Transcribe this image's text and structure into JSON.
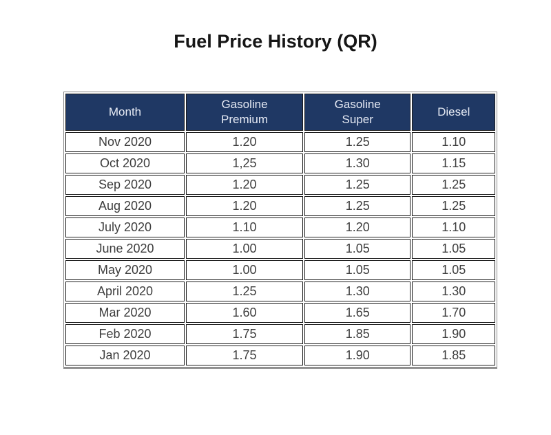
{
  "page": {
    "title": "Fuel Price History (QR)"
  },
  "colors": {
    "header_bg": "#1f3864",
    "header_text": "#e7ebf5",
    "cell_text": "#3d3d3d",
    "border": "#1c1c1c"
  },
  "table": {
    "headers": [
      {
        "line1": "Month",
        "line2": ""
      },
      {
        "line1": "Gasoline",
        "line2": "Premium"
      },
      {
        "line1": "Gasoline",
        "line2": "Super"
      },
      {
        "line1": "Diesel",
        "line2": ""
      }
    ],
    "rows": [
      {
        "month": "Nov 2020",
        "premium": "1.20",
        "super": "1.25",
        "diesel": "1.10"
      },
      {
        "month": "Oct 2020",
        "premium": "1,25",
        "super": "1.30",
        "diesel": "1.15"
      },
      {
        "month": "Sep 2020",
        "premium": "1.20",
        "super": "1.25",
        "diesel": "1.25"
      },
      {
        "month": "Aug 2020",
        "premium": "1.20",
        "super": "1.25",
        "diesel": "1.25"
      },
      {
        "month": "July 2020",
        "premium": "1.10",
        "super": "1.20",
        "diesel": "1.10"
      },
      {
        "month": "June 2020",
        "premium": "1.00",
        "super": "1.05",
        "diesel": "1.05"
      },
      {
        "month": "May 2020",
        "premium": "1.00",
        "super": "1.05",
        "diesel": "1.05"
      },
      {
        "month": "April 2020",
        "premium": "1.25",
        "super": "1.30",
        "diesel": "1.30"
      },
      {
        "month": "Mar 2020",
        "premium": "1.60",
        "super": "1.65",
        "diesel": "1.70"
      },
      {
        "month": "Feb 2020",
        "premium": "1.75",
        "super": "1.85",
        "diesel": "1.90"
      },
      {
        "month": "Jan 2020",
        "premium": "1.75",
        "super": "1.90",
        "diesel": "1.85"
      }
    ]
  }
}
